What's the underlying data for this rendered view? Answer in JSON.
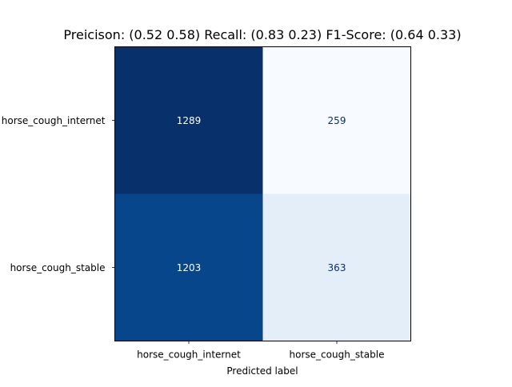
{
  "chart_data": {
    "type": "heatmap",
    "title": "Preicison: (0.52 0.58)   Recall: (0.83 0.23)   F1-Score: (0.64 0.33)",
    "xlabel": "Predicted label",
    "ylabel": "",
    "x_categories": [
      "horse_cough_internet",
      "horse_cough_stable"
    ],
    "y_categories": [
      "horse_cough_internet",
      "horse_cough_stable"
    ],
    "values": [
      [
        1289,
        259
      ],
      [
        1203,
        363
      ]
    ],
    "value_range": [
      259,
      1289
    ],
    "colormap": "Blues",
    "colors": {
      "min": "#f7fbff",
      "max": "#08306b",
      "dark_text": "#08306b",
      "light_text": "#ffffff"
    },
    "grid": false,
    "legend": "none"
  }
}
